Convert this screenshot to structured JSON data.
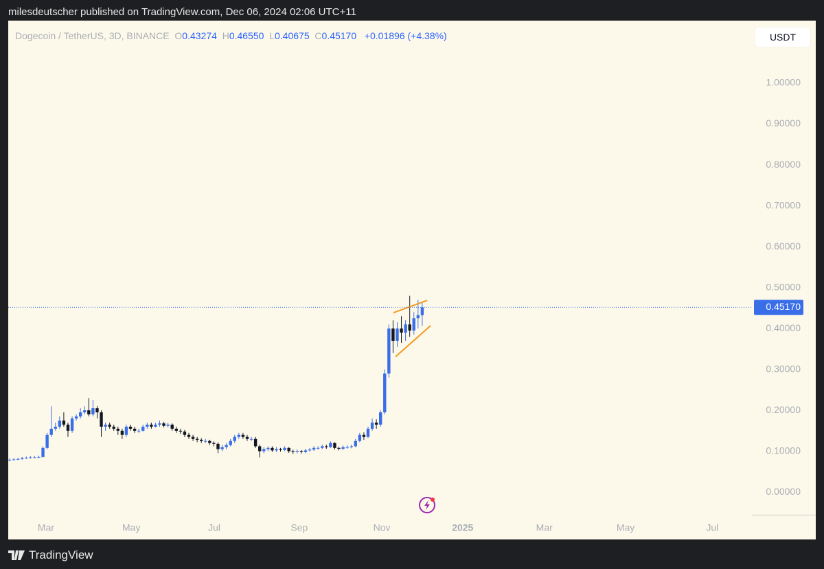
{
  "header": {
    "publisher": "milesdeutscher published on TradingView.com, Dec 06, 2024 02:06 UTC+11",
    "footer": "TradingView"
  },
  "chart_data": {
    "type": "candlestick",
    "symbol": "Dogecoin / TetherUS, 3D, BINANCE",
    "ohlc_legend": [
      {
        "key": "O",
        "text": "0.43274"
      },
      {
        "key": "H",
        "text": "0.46550"
      },
      {
        "key": "L",
        "text": "0.40675"
      },
      {
        "key": "C",
        "text": "0.45170"
      }
    ],
    "change": "+0.01896",
    "change_pct": "(+4.38%)",
    "currency": "USDT",
    "up_color": "#3a6ee8",
    "down_color": "#131722",
    "x": [
      0,
      1,
      2,
      3,
      4,
      5,
      6,
      7,
      8,
      9,
      10,
      11,
      12,
      13,
      14,
      15,
      16,
      17,
      18,
      19,
      20,
      21,
      22,
      23,
      24,
      25,
      26,
      27,
      28,
      29,
      30,
      31,
      32,
      33,
      34,
      35,
      36,
      37,
      38,
      39,
      40,
      41,
      42,
      43,
      44,
      45,
      46,
      47,
      48,
      49,
      50,
      51,
      52,
      53,
      54,
      55,
      56,
      57,
      58,
      59,
      60,
      61,
      62,
      63,
      64,
      65,
      66,
      67,
      68,
      69,
      70,
      71,
      72,
      73,
      74,
      75,
      76,
      77,
      78,
      79,
      80,
      81,
      82,
      83,
      84,
      85,
      86,
      87,
      88,
      89,
      90,
      91,
      92,
      93,
      94,
      95,
      96,
      97,
      98,
      99
    ],
    "open": [
      0.078,
      0.079,
      0.08,
      0.081,
      0.083,
      0.084,
      0.085,
      0.085,
      0.086,
      0.108,
      0.14,
      0.155,
      0.16,
      0.175,
      0.165,
      0.15,
      0.18,
      0.185,
      0.195,
      0.2,
      0.19,
      0.205,
      0.195,
      0.16,
      0.165,
      0.16,
      0.155,
      0.15,
      0.14,
      0.16,
      0.155,
      0.15,
      0.15,
      0.16,
      0.165,
      0.16,
      0.165,
      0.168,
      0.162,
      0.165,
      0.155,
      0.15,
      0.148,
      0.14,
      0.135,
      0.13,
      0.128,
      0.125,
      0.125,
      0.12,
      0.118,
      0.105,
      0.11,
      0.115,
      0.125,
      0.135,
      0.14,
      0.135,
      0.13,
      0.13,
      0.112,
      0.1,
      0.105,
      0.108,
      0.102,
      0.105,
      0.103,
      0.108,
      0.1,
      0.098,
      0.1,
      0.098,
      0.102,
      0.104,
      0.108,
      0.108,
      0.112,
      0.11,
      0.12,
      0.108,
      0.106,
      0.11,
      0.11,
      0.112,
      0.125,
      0.14,
      0.135,
      0.155,
      0.17,
      0.165,
      0.195,
      0.29,
      0.4,
      0.37,
      0.4,
      0.39,
      0.41,
      0.395,
      0.425,
      0.43274
    ],
    "high": [
      0.082,
      0.083,
      0.084,
      0.086,
      0.087,
      0.088,
      0.088,
      0.089,
      0.112,
      0.145,
      0.21,
      0.17,
      0.185,
      0.195,
      0.17,
      0.185,
      0.19,
      0.205,
      0.21,
      0.23,
      0.225,
      0.21,
      0.2,
      0.17,
      0.17,
      0.165,
      0.16,
      0.155,
      0.165,
      0.165,
      0.16,
      0.155,
      0.165,
      0.17,
      0.17,
      0.17,
      0.175,
      0.172,
      0.17,
      0.168,
      0.16,
      0.155,
      0.152,
      0.145,
      0.14,
      0.135,
      0.132,
      0.13,
      0.128,
      0.124,
      0.122,
      0.115,
      0.12,
      0.13,
      0.14,
      0.145,
      0.145,
      0.14,
      0.135,
      0.135,
      0.116,
      0.11,
      0.112,
      0.112,
      0.11,
      0.108,
      0.112,
      0.11,
      0.104,
      0.104,
      0.103,
      0.106,
      0.108,
      0.112,
      0.112,
      0.116,
      0.116,
      0.124,
      0.122,
      0.111,
      0.114,
      0.114,
      0.116,
      0.13,
      0.145,
      0.146,
      0.16,
      0.18,
      0.178,
      0.2,
      0.3,
      0.41,
      0.42,
      0.415,
      0.43,
      0.42,
      0.48,
      0.44,
      0.47,
      0.4655
    ],
    "low": [
      0.076,
      0.077,
      0.078,
      0.079,
      0.081,
      0.082,
      0.083,
      0.083,
      0.084,
      0.105,
      0.135,
      0.15,
      0.155,
      0.16,
      0.135,
      0.145,
      0.175,
      0.18,
      0.19,
      0.185,
      0.185,
      0.18,
      0.135,
      0.15,
      0.155,
      0.15,
      0.14,
      0.13,
      0.135,
      0.15,
      0.145,
      0.145,
      0.148,
      0.155,
      0.155,
      0.158,
      0.16,
      0.158,
      0.158,
      0.15,
      0.145,
      0.142,
      0.135,
      0.13,
      0.125,
      0.122,
      0.12,
      0.12,
      0.115,
      0.112,
      0.095,
      0.1,
      0.105,
      0.112,
      0.12,
      0.13,
      0.13,
      0.125,
      0.125,
      0.108,
      0.085,
      0.095,
      0.1,
      0.098,
      0.098,
      0.099,
      0.1,
      0.096,
      0.093,
      0.095,
      0.094,
      0.095,
      0.099,
      0.101,
      0.104,
      0.105,
      0.106,
      0.108,
      0.104,
      0.102,
      0.103,
      0.106,
      0.107,
      0.11,
      0.122,
      0.128,
      0.132,
      0.15,
      0.155,
      0.16,
      0.19,
      0.28,
      0.34,
      0.355,
      0.365,
      0.37,
      0.38,
      0.385,
      0.4,
      0.40675
    ],
    "close": [
      0.079,
      0.08,
      0.081,
      0.083,
      0.084,
      0.085,
      0.085,
      0.086,
      0.108,
      0.14,
      0.155,
      0.16,
      0.175,
      0.165,
      0.15,
      0.18,
      0.185,
      0.195,
      0.2,
      0.19,
      0.205,
      0.195,
      0.16,
      0.165,
      0.16,
      0.155,
      0.15,
      0.14,
      0.16,
      0.155,
      0.15,
      0.15,
      0.16,
      0.165,
      0.16,
      0.165,
      0.168,
      0.162,
      0.165,
      0.155,
      0.15,
      0.148,
      0.14,
      0.135,
      0.13,
      0.128,
      0.125,
      0.125,
      0.12,
      0.118,
      0.105,
      0.11,
      0.115,
      0.125,
      0.135,
      0.14,
      0.135,
      0.13,
      0.13,
      0.112,
      0.1,
      0.105,
      0.108,
      0.102,
      0.105,
      0.103,
      0.108,
      0.1,
      0.098,
      0.1,
      0.098,
      0.102,
      0.104,
      0.108,
      0.108,
      0.112,
      0.11,
      0.12,
      0.108,
      0.106,
      0.11,
      0.11,
      0.112,
      0.125,
      0.14,
      0.135,
      0.155,
      0.17,
      0.165,
      0.195,
      0.29,
      0.4,
      0.37,
      0.4,
      0.39,
      0.41,
      0.395,
      0.425,
      0.43274,
      0.4517
    ],
    "last_price": {
      "value": 0.4517,
      "label": "0.45170"
    },
    "xlim": [
      -0.33,
      178.1
    ],
    "xticks": [
      {
        "value": 8.73,
        "label": "Mar"
      },
      {
        "value": 29.2,
        "label": "May"
      },
      {
        "value": 49.1,
        "label": "Jul"
      },
      {
        "value": 69.5,
        "label": "Sep"
      },
      {
        "value": 89.3,
        "label": "Nov"
      },
      {
        "value": 108.7,
        "label": "2025"
      },
      {
        "value": 128.3,
        "label": "Mar"
      },
      {
        "value": 147.8,
        "label": "May"
      },
      {
        "value": 168.6,
        "label": "Jul"
      }
    ],
    "ylim": [
      -0.057,
      1.153
    ],
    "yticks": [
      {
        "value": 0,
        "label": "0.00000"
      },
      {
        "value": 0.1,
        "label": "0.10000"
      },
      {
        "value": 0.2,
        "label": "0.20000"
      },
      {
        "value": 0.3,
        "label": "0.30000"
      },
      {
        "value": 0.4,
        "label": "0.40000"
      },
      {
        "value": 0.5,
        "label": "0.50000"
      },
      {
        "value": 0.6,
        "label": "0.60000"
      },
      {
        "value": 0.7,
        "label": "0.70000"
      },
      {
        "value": 0.8,
        "label": "0.80000"
      },
      {
        "value": 0.9,
        "label": "0.90000"
      },
      {
        "value": 1,
        "label": "1.00000"
      }
    ],
    "drawings": [
      {
        "color": "#f29a1f",
        "points": [
          [
            92.1,
            0.4387
          ],
          [
            100.2,
            0.469
          ]
        ]
      },
      {
        "color": "#f29a1f",
        "points": [
          [
            92.6,
            0.331
          ],
          [
            101.0,
            0.407
          ]
        ]
      }
    ]
  }
}
